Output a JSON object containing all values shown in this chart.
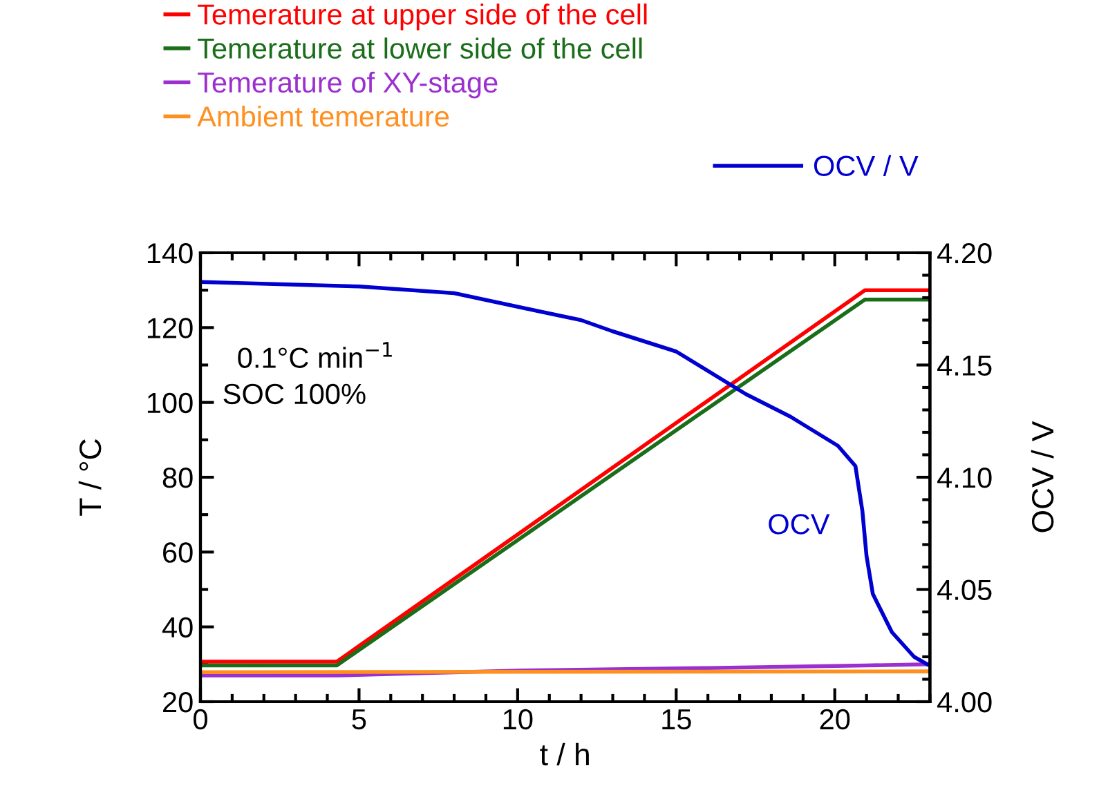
{
  "chart_data": {
    "type": "line",
    "xlabel": "t / h",
    "ylabel": "T / °C",
    "y2label": "OCV / V",
    "xlim": [
      0,
      23
    ],
    "xticks": [
      0,
      5,
      10,
      15,
      20
    ],
    "ylim": [
      20,
      140
    ],
    "yticks": [
      20,
      40,
      60,
      80,
      100,
      120,
      140
    ],
    "y2lim": [
      4.0,
      4.2
    ],
    "y2ticks": [
      {
        "value": 4.0,
        "label": "4.00"
      },
      {
        "value": 4.05,
        "label": "4.05"
      },
      {
        "value": 4.1,
        "label": "4.10"
      },
      {
        "value": 4.15,
        "label": "4.15"
      },
      {
        "value": 4.2,
        "label": "4.20"
      }
    ],
    "grid": false,
    "legend": "top",
    "marker": "none",
    "line_style": "solid",
    "series": [
      {
        "name": "Temerature at upper side of the cell",
        "color": "#ff0000",
        "x": [
          0,
          4.3,
          20.95,
          23
        ],
        "values": [
          30.7,
          30.7,
          130,
          130
        ]
      },
      {
        "name": "Temerature at lower side of the cell",
        "color": "#1a6e1a",
        "x": [
          0,
          4.3,
          20.95,
          23
        ],
        "values": [
          29.7,
          29.7,
          127.5,
          127.5
        ]
      },
      {
        "name": "Temerature of XY-stage",
        "color": "#9b30d0",
        "x": [
          0,
          4.3,
          10,
          16,
          21,
          23
        ],
        "values": [
          27,
          27,
          28.3,
          29,
          29.7,
          30
        ]
      },
      {
        "name": "Ambient temerature",
        "color": "#ff9020",
        "x": [
          0,
          10,
          23
        ],
        "values": [
          27.9,
          28,
          28.1
        ]
      },
      {
        "name": "OCV / V",
        "color": "#0000d0",
        "axis": "y2",
        "x": [
          0,
          5,
          8,
          10.65,
          12,
          13,
          15,
          17.2,
          18.6,
          20.1,
          20.65,
          20.87,
          21.0,
          21.2,
          21.8,
          22.5,
          23
        ],
        "values": [
          4.187,
          4.185,
          4.182,
          4.174,
          4.17,
          4.165,
          4.156,
          4.137,
          4.127,
          4.114,
          4.105,
          4.085,
          4.065,
          4.048,
          4.031,
          4.02,
          4.016
        ]
      }
    ],
    "annotations": [
      "0.1°C min$^{−1}$",
      "SOC 100%",
      "OCV"
    ]
  }
}
